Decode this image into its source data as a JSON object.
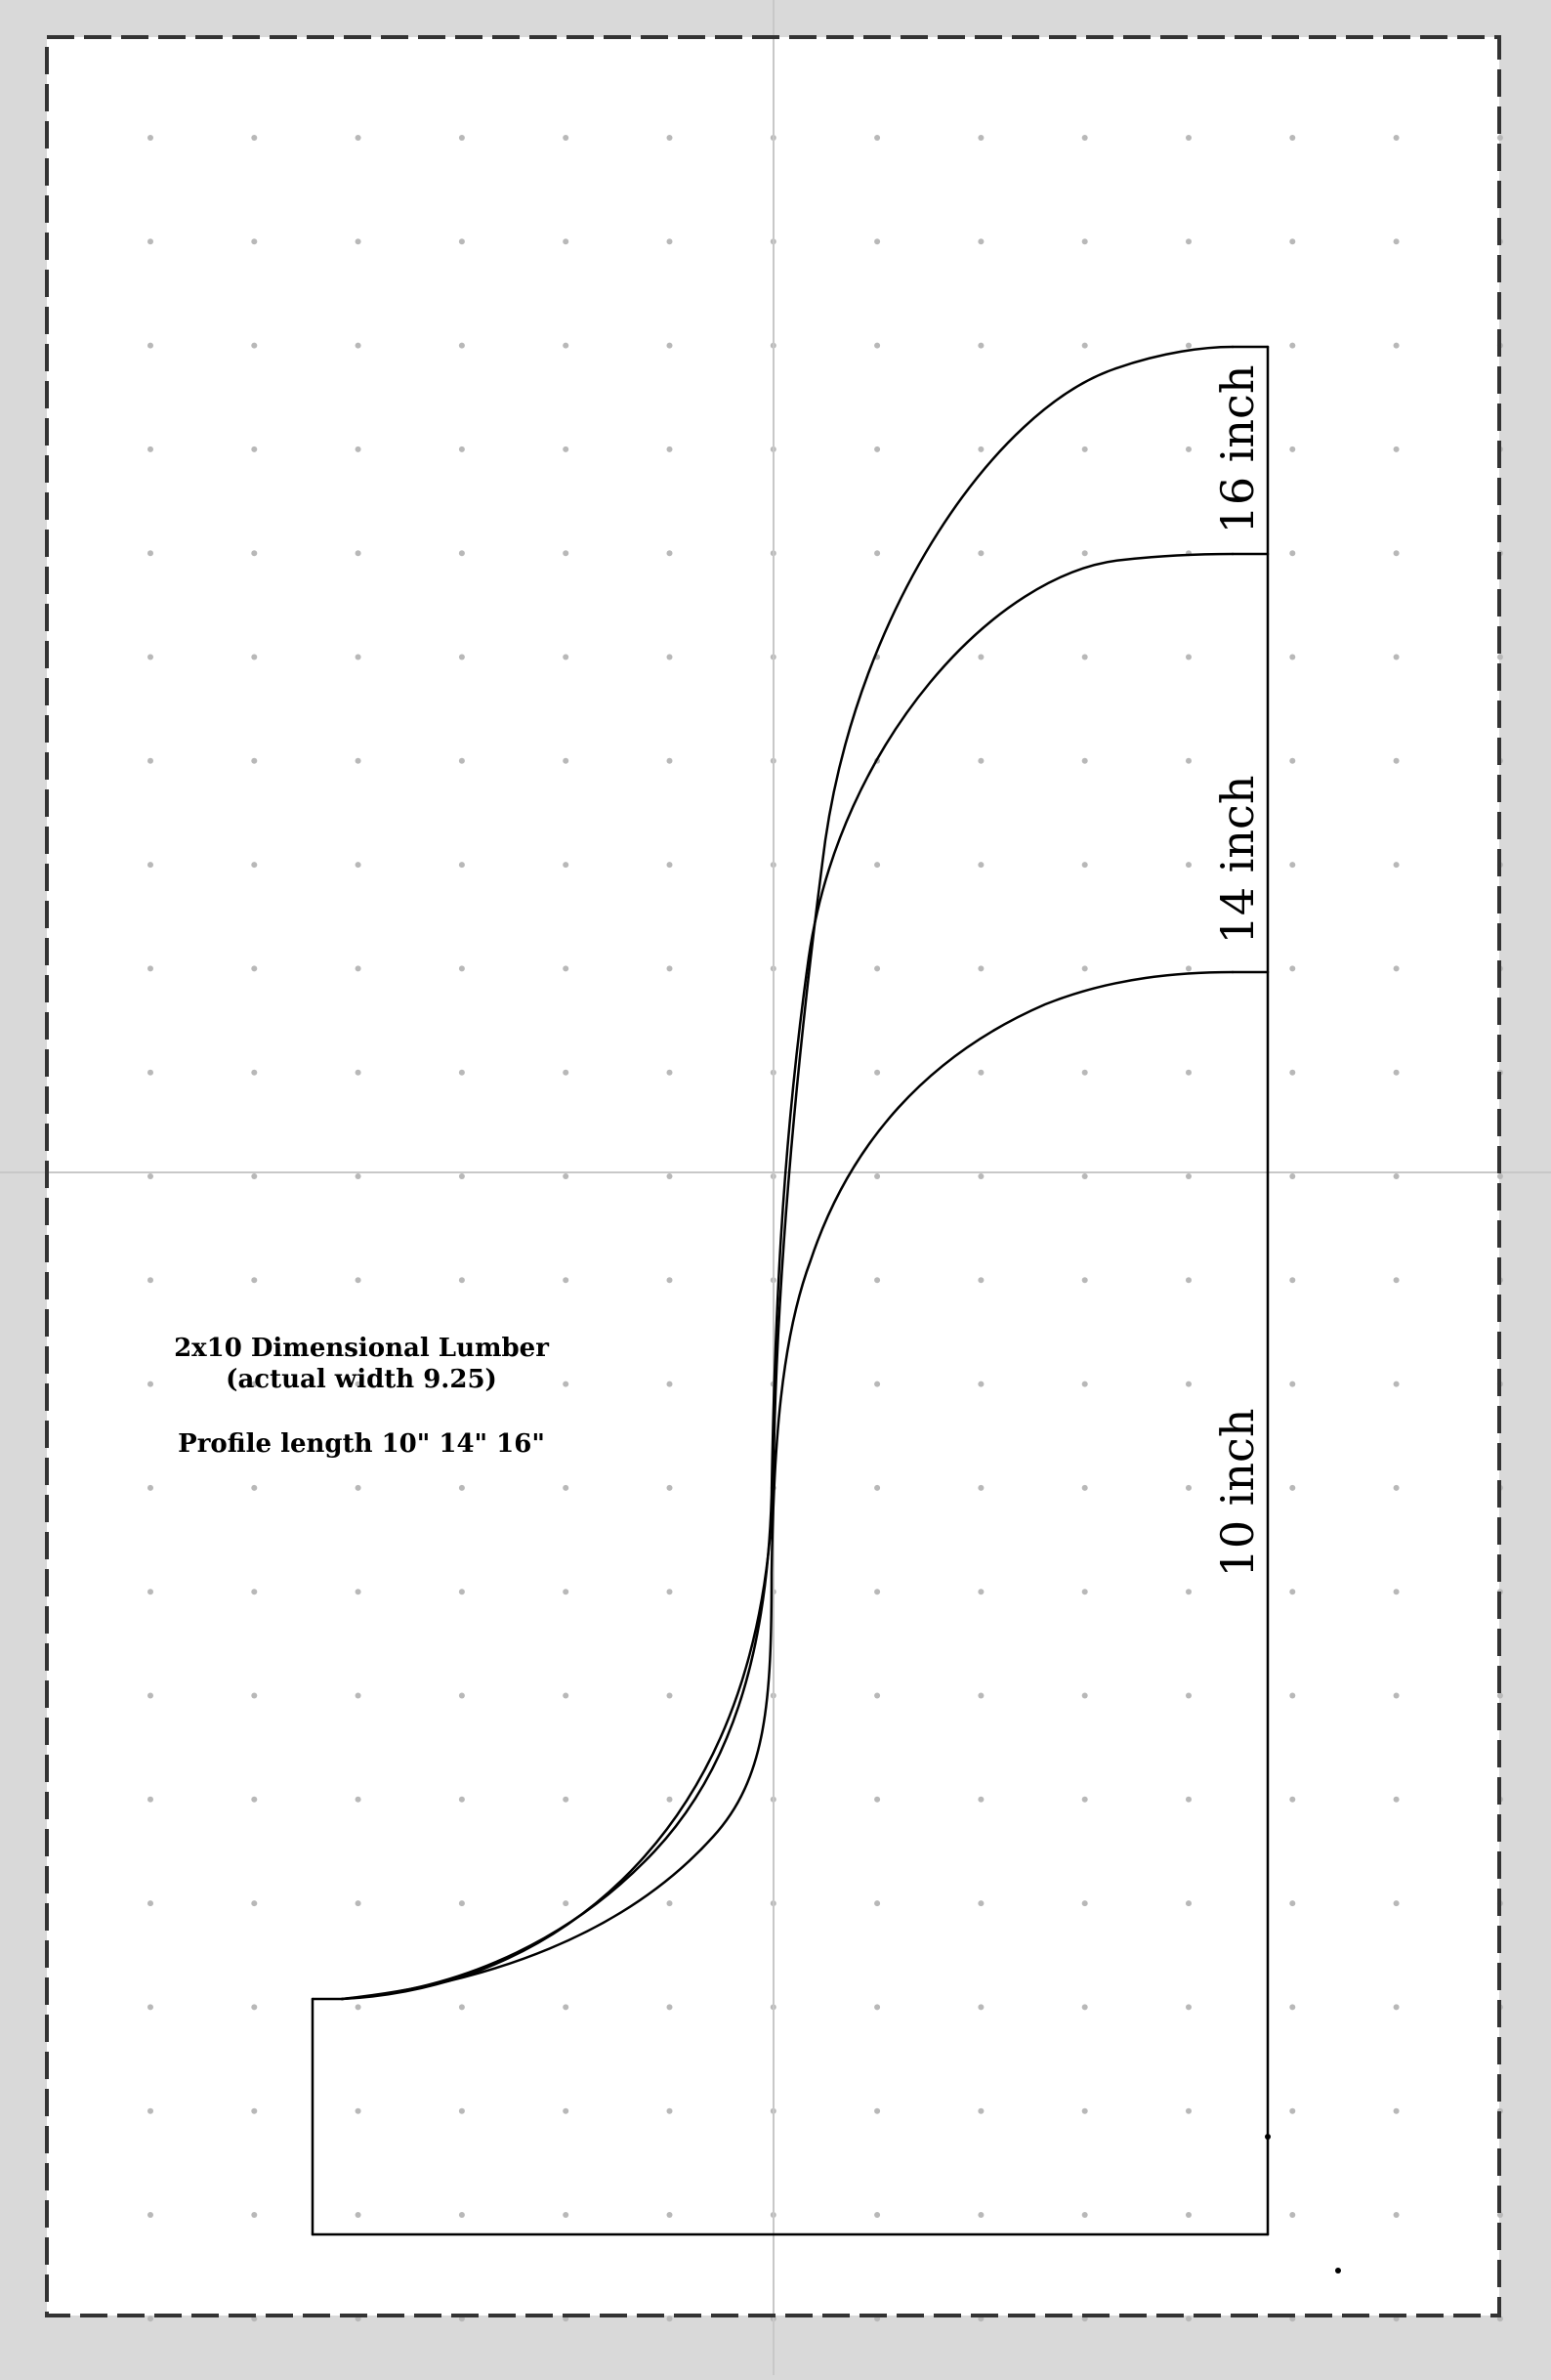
{
  "notes": {
    "line1": "2x10 Dimensional Lumber",
    "line2": "(actual width 9.25)",
    "line3": "Profile length 10\" 14\" 16\""
  },
  "profiles": [
    {
      "label": "16 inch",
      "length_in": 16
    },
    {
      "label": "14 inch",
      "length_in": 14
    },
    {
      "label": "10 inch",
      "length_in": 10
    }
  ],
  "colors": {
    "background": "#d9d9d9",
    "page": "#ffffff",
    "ink": "#000000",
    "grid_dot": "#b8b8b8",
    "center_line": "#c8c8c8",
    "page_border": "#333333"
  }
}
